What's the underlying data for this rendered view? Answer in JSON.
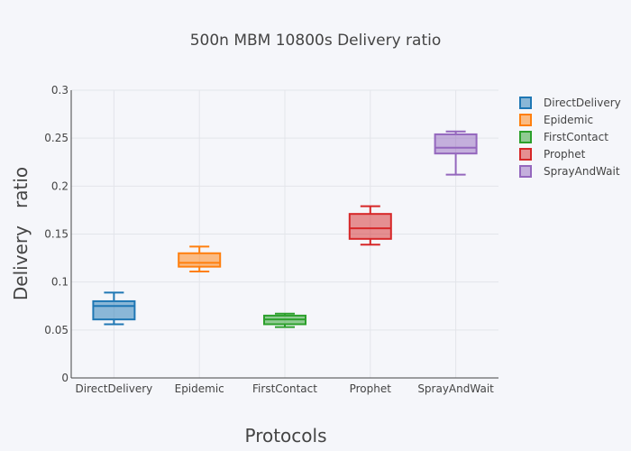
{
  "chart_data": {
    "type": "box",
    "title": "500n MBM 10800s Delivery ratio",
    "xlabel": "Protocols",
    "ylabel": "Delivery   ratio",
    "ylim": [
      0,
      0.3
    ],
    "yticks": [
      0,
      0.05,
      0.1,
      0.15,
      0.2,
      0.25,
      0.3
    ],
    "ytick_labels": [
      "0",
      "0.05",
      "0.1",
      "0.15",
      "0.2",
      "0.25",
      "0.3"
    ],
    "grid": true,
    "legend_position": "top-right",
    "categories": [
      "DirectDelivery",
      "Epidemic",
      "FirstContact",
      "Prophet",
      "SprayAndWait"
    ],
    "series": [
      {
        "name": "DirectDelivery",
        "color": "#1f77b4",
        "min": 0.056,
        "q1": 0.061,
        "median": 0.075,
        "q3": 0.08,
        "max": 0.089
      },
      {
        "name": "Epidemic",
        "color": "#ff7f0e",
        "min": 0.111,
        "q1": 0.116,
        "median": 0.12,
        "q3": 0.13,
        "max": 0.137
      },
      {
        "name": "FirstContact",
        "color": "#2ca02c",
        "min": 0.053,
        "q1": 0.056,
        "median": 0.061,
        "q3": 0.065,
        "max": 0.067
      },
      {
        "name": "Prophet",
        "color": "#d62728",
        "min": 0.139,
        "q1": 0.145,
        "median": 0.156,
        "q3": 0.171,
        "max": 0.179
      },
      {
        "name": "SprayAndWait",
        "color": "#9467bd",
        "min": 0.212,
        "q1": 0.234,
        "median": 0.24,
        "q3": 0.254,
        "max": 0.257
      }
    ]
  }
}
